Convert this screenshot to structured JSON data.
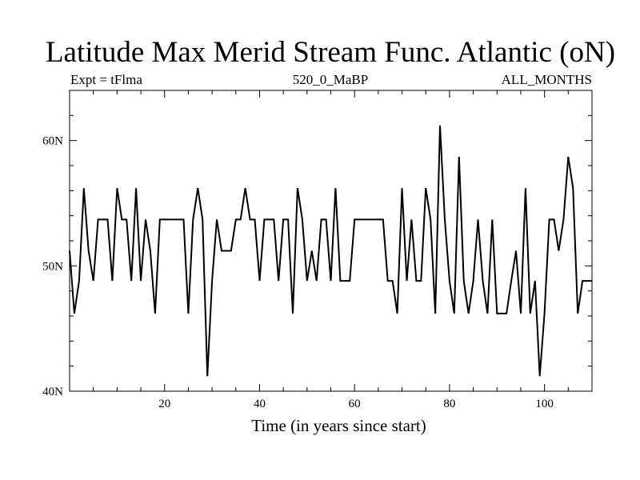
{
  "chart_data": {
    "type": "line",
    "title": "Latitude Max Merid Stream Func. Atlantic (oN)",
    "subtitle_left": "Expt = tFlma",
    "subtitle_center": "520_0_MaBP",
    "subtitle_right": "ALL_MONTHS",
    "xlabel": "Time (in years since start)",
    "ylabel": "",
    "xlim": [
      0,
      110
    ],
    "ylim": [
      40,
      64
    ],
    "x_ticks": [
      20,
      40,
      60,
      80,
      100
    ],
    "x_tick_labels": [
      "20",
      "40",
      "60",
      "80",
      "100"
    ],
    "y_ticks": [
      40,
      50,
      60
    ],
    "y_tick_labels": [
      "40N",
      "50N",
      "60N"
    ],
    "series": [
      {
        "name": "Latitude Max Merid Stream Func.",
        "color": "#000000",
        "x": [
          0,
          1,
          2,
          3,
          4,
          5,
          6,
          7,
          8,
          9,
          10,
          11,
          12,
          13,
          14,
          15,
          16,
          17,
          18,
          19,
          20,
          21,
          22,
          23,
          24,
          25,
          26,
          27,
          28,
          29,
          30,
          31,
          32,
          33,
          34,
          35,
          36,
          37,
          38,
          39,
          40,
          41,
          42,
          43,
          44,
          45,
          46,
          47,
          48,
          49,
          50,
          51,
          52,
          53,
          54,
          55,
          56,
          57,
          58,
          59,
          60,
          61,
          62,
          63,
          64,
          65,
          66,
          67,
          68,
          69,
          70,
          71,
          72,
          73,
          74,
          75,
          76,
          77,
          78,
          79,
          80,
          81,
          82,
          83,
          84,
          85,
          86,
          87,
          88,
          89,
          90,
          91,
          92,
          93,
          94,
          95,
          96,
          97,
          98,
          99,
          100,
          101,
          102,
          103,
          104,
          105,
          106,
          107,
          108,
          109,
          110
        ],
        "values": [
          51.2,
          46.2,
          48.8,
          56.2,
          51.2,
          48.8,
          53.7,
          53.7,
          53.7,
          48.8,
          56.2,
          53.7,
          53.7,
          48.8,
          56.2,
          48.8,
          53.7,
          51.2,
          46.2,
          53.7,
          53.7,
          53.7,
          53.7,
          53.7,
          53.7,
          46.2,
          53.7,
          56.2,
          53.7,
          41.2,
          48.8,
          53.7,
          51.2,
          51.2,
          51.2,
          53.7,
          53.7,
          56.2,
          53.7,
          53.7,
          48.8,
          53.7,
          53.7,
          53.7,
          48.8,
          53.7,
          53.7,
          46.2,
          56.2,
          53.7,
          48.8,
          51.2,
          48.8,
          53.7,
          53.7,
          48.8,
          56.2,
          48.8,
          48.8,
          48.8,
          53.7,
          53.7,
          53.7,
          53.7,
          53.7,
          53.7,
          53.7,
          48.8,
          48.8,
          46.2,
          56.2,
          48.8,
          53.7,
          48.8,
          48.8,
          56.2,
          53.7,
          46.2,
          61.2,
          53.7,
          48.8,
          46.2,
          58.7,
          48.8,
          46.2,
          48.8,
          53.7,
          48.8,
          46.2,
          53.7,
          46.2,
          46.2,
          46.2,
          48.8,
          51.2,
          46.2,
          56.2,
          46.2,
          48.8,
          41.2,
          46.2,
          53.7,
          53.7,
          51.2,
          53.7,
          58.7,
          56.2,
          46.2,
          48.8,
          48.8,
          48.8
        ]
      }
    ]
  }
}
